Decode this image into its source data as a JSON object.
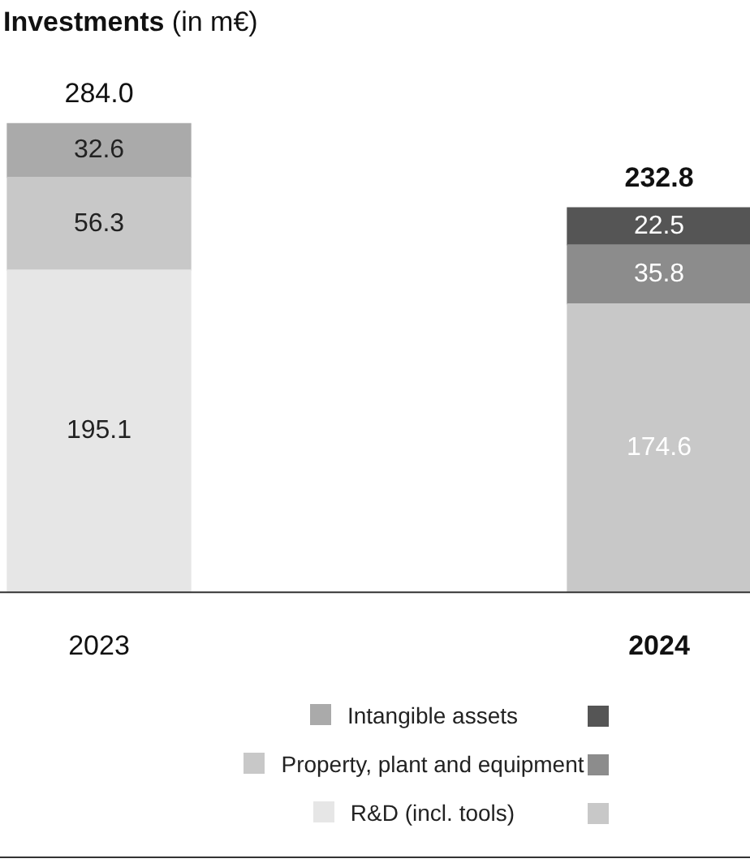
{
  "chart_data": {
    "type": "bar",
    "title": "Investments (in m€)",
    "stacked": true,
    "data_labels": true,
    "legend": "bottom",
    "categories": [
      "2023",
      "2024"
    ],
    "totals": [
      "284.0",
      "232.8"
    ],
    "series": [
      {
        "name": "R&D (incl. tools)",
        "colors": [
          "#e6e6e6",
          "#c8c8c8"
        ],
        "values": [
          195.1,
          174.6
        ]
      },
      {
        "name": "Property, plant and equipment",
        "colors": [
          "#c8c8c8",
          "#8c8c8c"
        ],
        "values": [
          56.3,
          35.8
        ]
      },
      {
        "name": "Intangible assets",
        "colors": [
          "#aaaaaa",
          "#555555"
        ],
        "values": [
          32.6,
          22.5
        ]
      }
    ]
  }
}
